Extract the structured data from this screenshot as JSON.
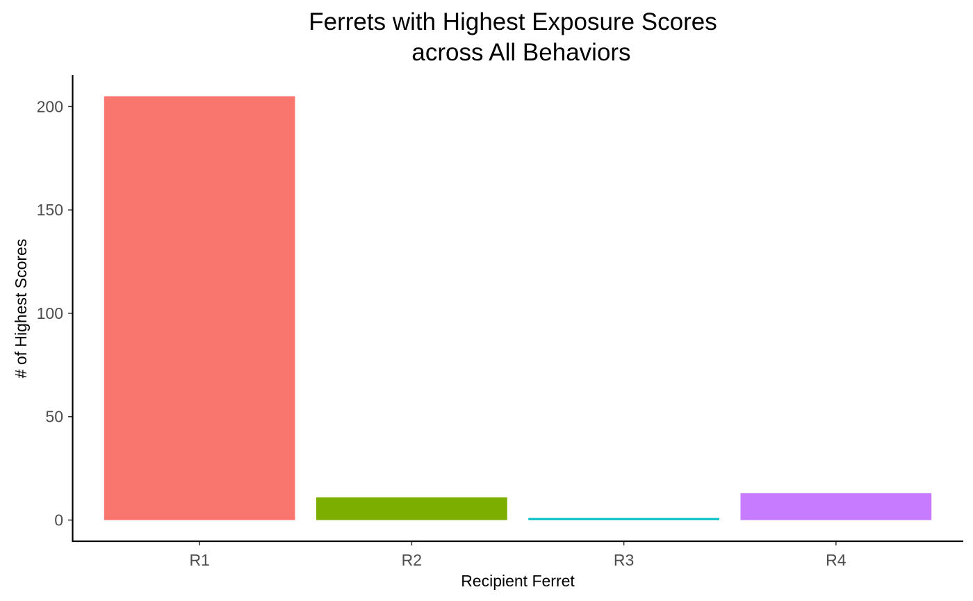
{
  "chart_data": {
    "type": "bar",
    "title": [
      "Ferrets with Highest Exposure Scores",
      "across All Behaviors"
    ],
    "xlabel": "Recipient Ferret",
    "ylabel": "# of Highest Scores",
    "categories": [
      "R1",
      "R2",
      "R3",
      "R4"
    ],
    "values": [
      205,
      11,
      1,
      13
    ],
    "colors": [
      "#F8766D",
      "#7CAE00",
      "#00BFC4",
      "#C77CFF"
    ],
    "ylim": [
      -10.25,
      215.25
    ],
    "yticks": [
      0,
      50,
      100,
      150,
      200
    ],
    "grid": false,
    "legend": "none"
  }
}
